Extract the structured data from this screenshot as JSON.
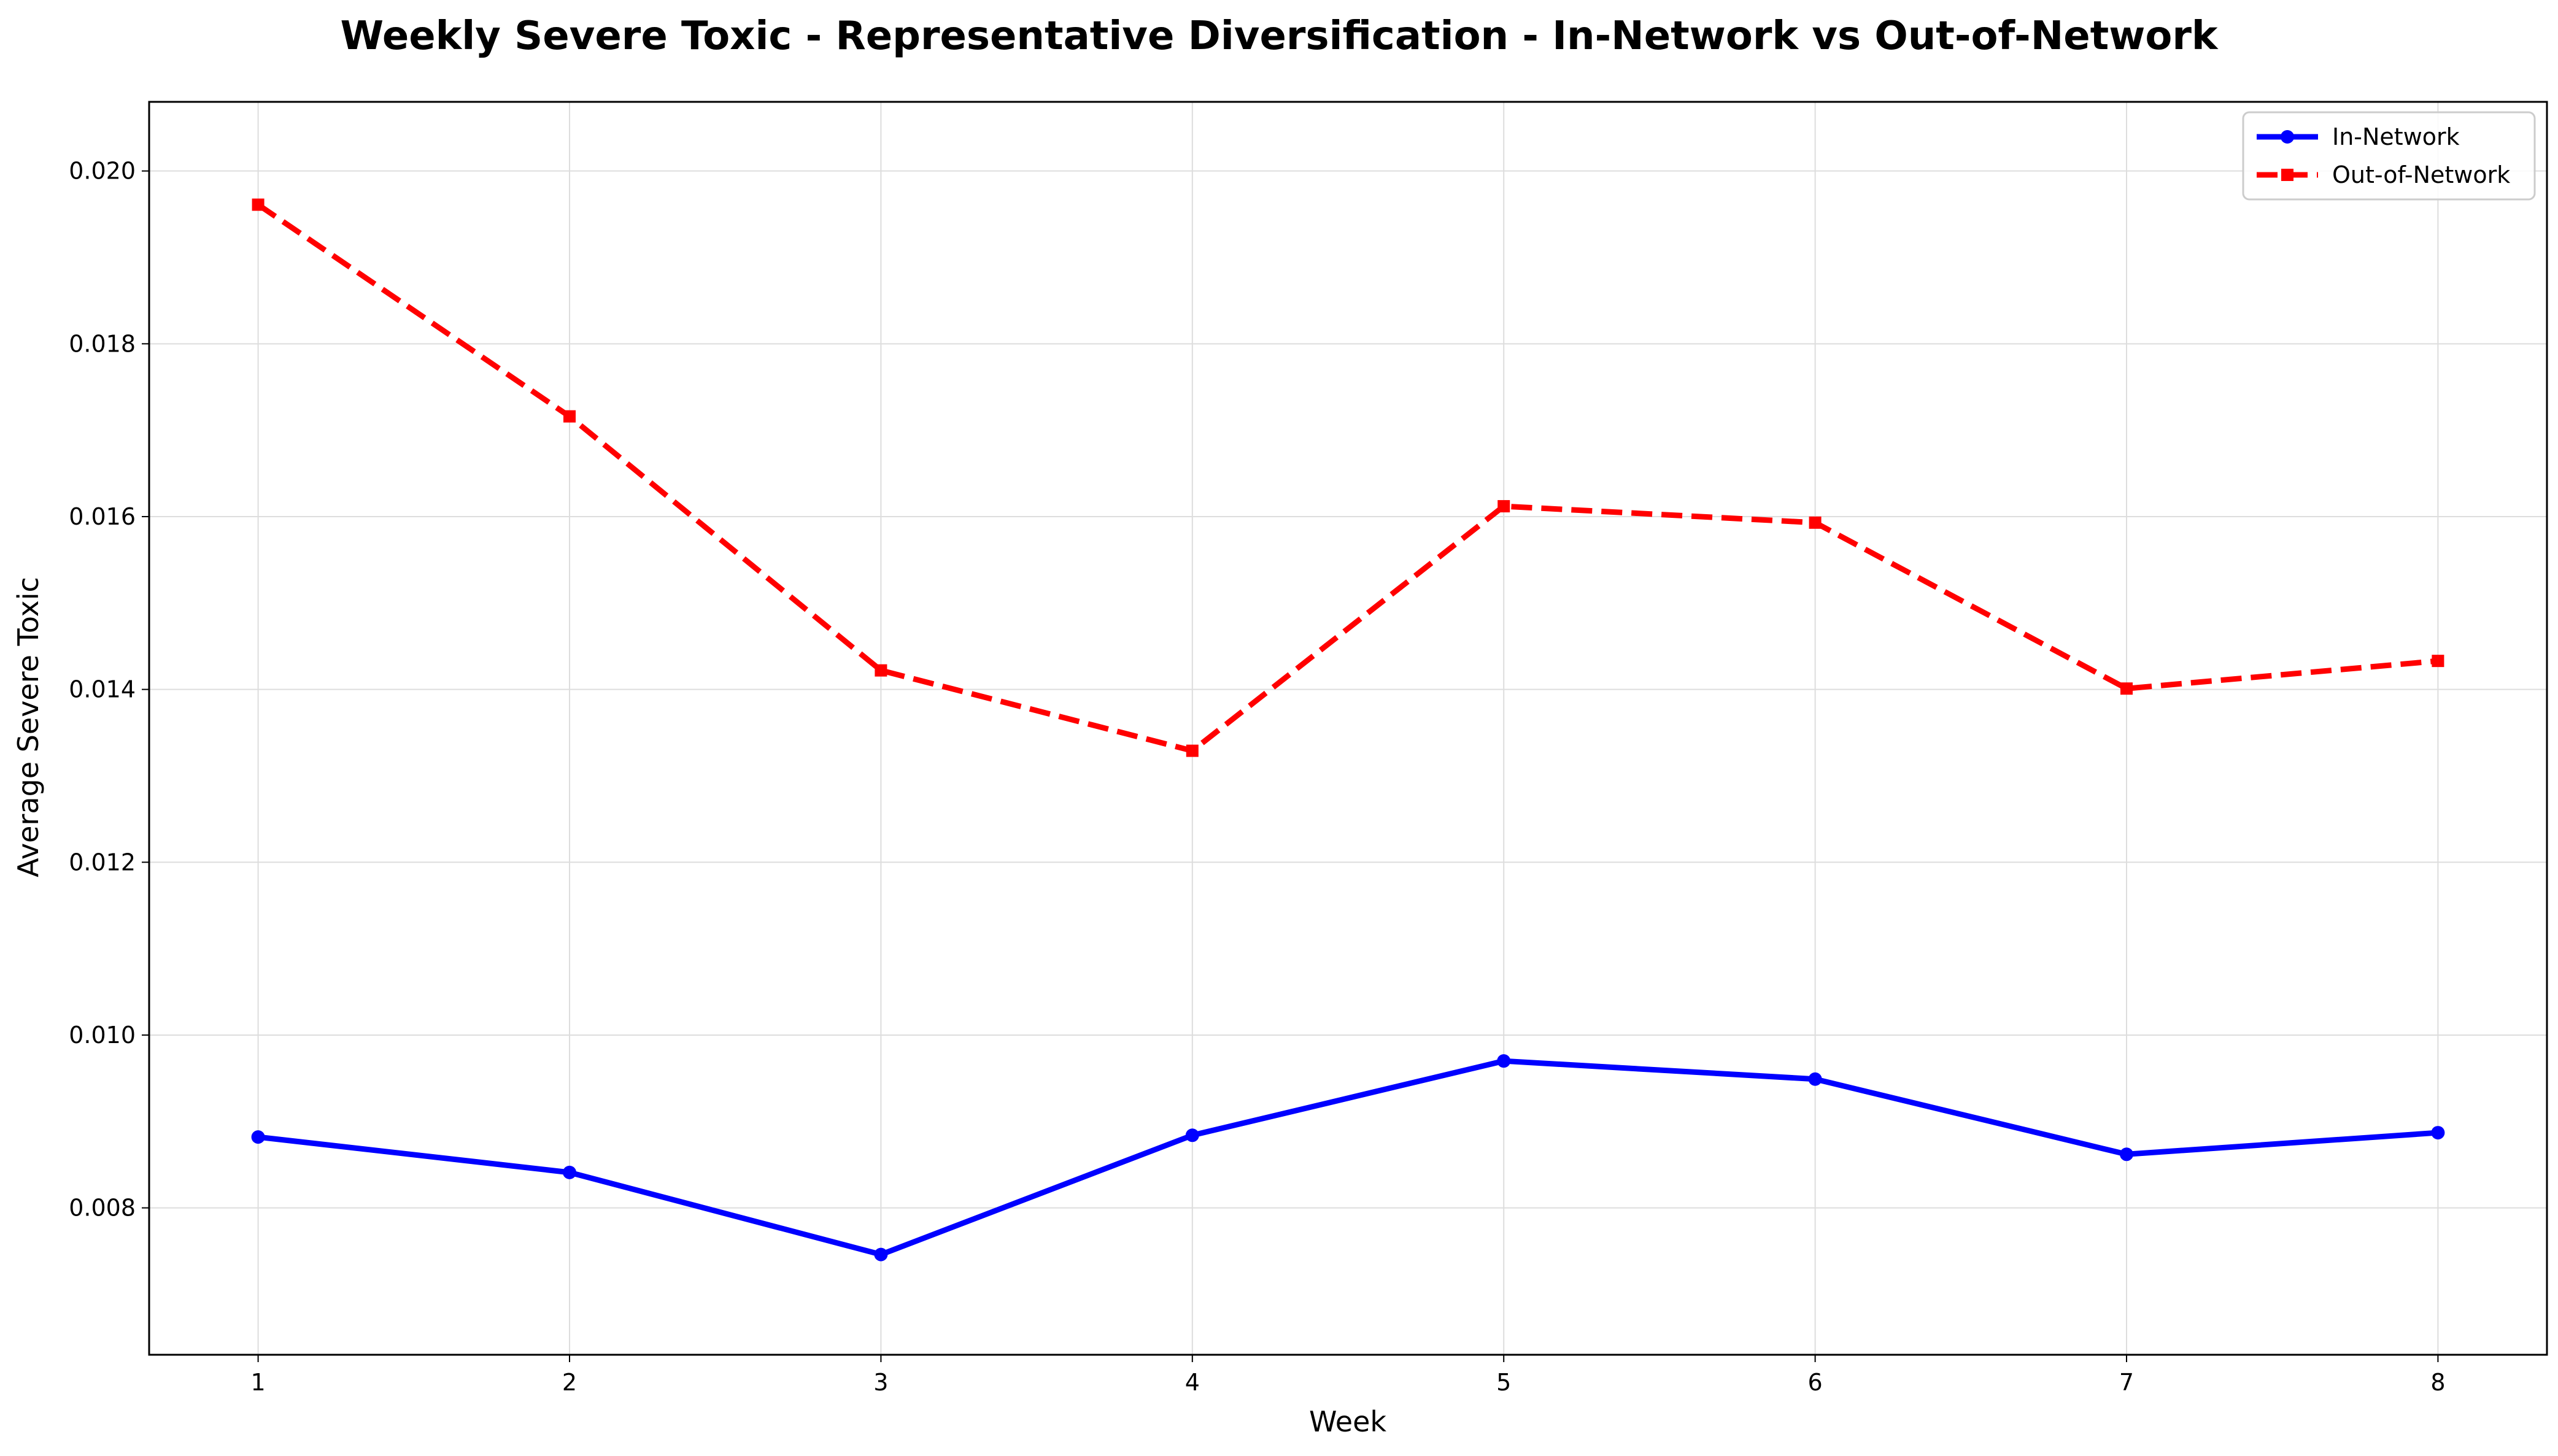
{
  "chart_data": {
    "type": "line",
    "title": "Weekly Severe Toxic - Representative Diversification - In-Network vs Out-of-Network",
    "xlabel": "Week",
    "ylabel": "Average Severe Toxic",
    "x": [
      1,
      2,
      3,
      4,
      5,
      6,
      7,
      8
    ],
    "x_ticks": [
      "1",
      "2",
      "3",
      "4",
      "5",
      "6",
      "7",
      "8"
    ],
    "xlim": [
      0.65,
      8.35
    ],
    "ylim": [
      0.0063,
      0.0208
    ],
    "y_ticks": [
      "0.008",
      "0.010",
      "0.012",
      "0.014",
      "0.016",
      "0.018",
      "0.020"
    ],
    "grid": true,
    "legend_position": "top-right",
    "series": [
      {
        "name": "In-Network",
        "color": "#0000ff",
        "line_style": "solid",
        "marker": "circle",
        "values": [
          0.00882,
          0.00841,
          0.00746,
          0.00884,
          0.0097,
          0.00949,
          0.00862,
          0.00887
        ]
      },
      {
        "name": "Out-of-Network",
        "color": "#ff0000",
        "line_style": "dashed",
        "marker": "square",
        "values": [
          0.01961,
          0.01716,
          0.01422,
          0.01329,
          0.01612,
          0.01593,
          0.01401,
          0.01433
        ]
      }
    ]
  }
}
